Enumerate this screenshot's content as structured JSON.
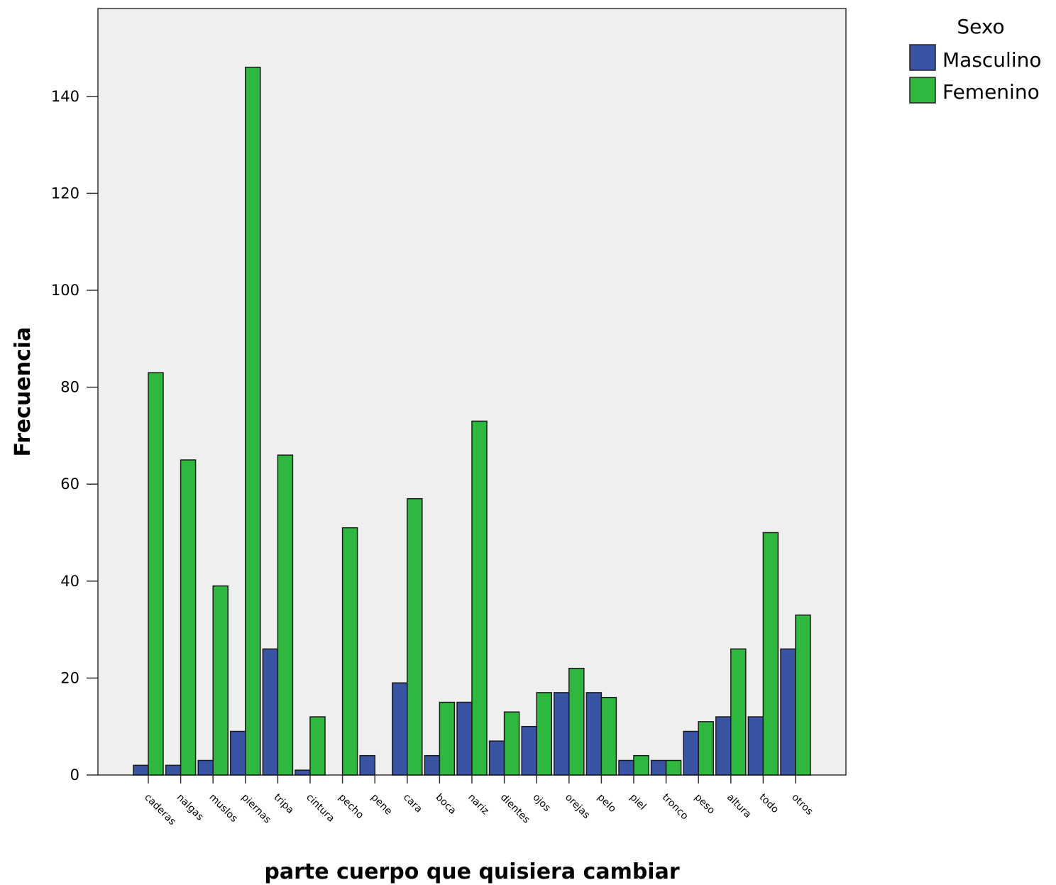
{
  "chart_data": {
    "type": "bar",
    "title": "",
    "xlabel": "parte cuerpo que quisiera cambiar",
    "ylabel": "Frecuencia",
    "ylim": [
      0,
      158
    ],
    "yticks": [
      0,
      20,
      40,
      60,
      80,
      100,
      120,
      140
    ],
    "grid": false,
    "legend_title": "Sexo",
    "legend_position": "top-right",
    "categories": [
      "caderas",
      "nalgas",
      "muslos",
      "piernas",
      "tripa",
      "cintura",
      "pecho",
      "pene",
      "cara",
      "boca",
      "nariz",
      "dientes",
      "ojos",
      "orejas",
      "pelo",
      "piel",
      "tronco",
      "peso",
      "altura",
      "todo",
      "otros"
    ],
    "series": [
      {
        "name": "Masculino",
        "color": "#3a54a4",
        "values": [
          2,
          2,
          3,
          9,
          26,
          1,
          0,
          4,
          19,
          4,
          15,
          7,
          10,
          17,
          17,
          3,
          3,
          9,
          12,
          12,
          26
        ]
      },
      {
        "name": "Femenino",
        "color": "#2fb83f",
        "values": [
          83,
          65,
          39,
          146,
          66,
          12,
          51,
          0,
          57,
          15,
          73,
          13,
          17,
          22,
          16,
          4,
          3,
          11,
          26,
          50,
          33
        ]
      }
    ],
    "plot_background": "#efefef"
  }
}
